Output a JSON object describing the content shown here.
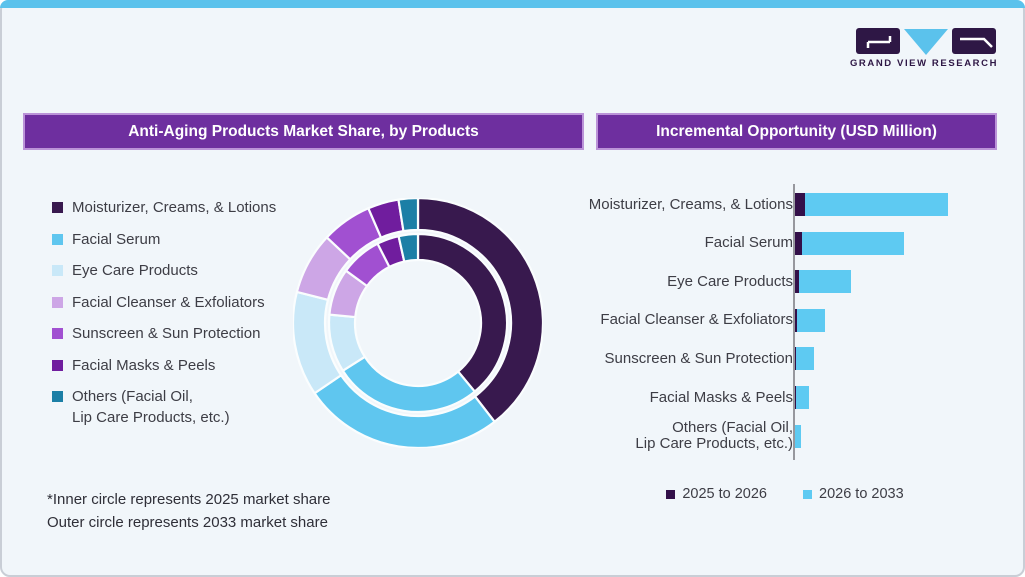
{
  "brand": {
    "name": "GRAND VIEW RESEARCH",
    "logo_colors": {
      "block": "#2e1745",
      "v_triangle": "#5bc2ec"
    }
  },
  "panels": {
    "left": {
      "title": "Anti-Aging Products Market Share, by Products"
    },
    "right": {
      "title": "Incremental Opportunity (USD Million)"
    }
  },
  "footnote": {
    "line1": "*Inner circle represents 2025 market share",
    "line2": "Outer circle represents 2033 market share"
  },
  "colors": {
    "background": "#f1f6fa",
    "card_border": "#c9ced6",
    "top_strip": "#5bc2ec",
    "header_fill": "#6e2f9f",
    "header_border": "#bb93d8",
    "text": "#3d3d45",
    "axis": "#97989e",
    "segment_gap": "#fafdfe"
  },
  "chart_data": [
    {
      "type": "pie",
      "variant": "double-donut",
      "title": "Anti-Aging Products Market Share, by Products",
      "note": "Inner circle = 2025 market share, outer circle = 2033 market share; values estimated from arc angles (percent)",
      "categories": [
        "Moisturizer, Creams, & Lotions",
        "Facial Serum",
        "Eye Care Products",
        "Facial Cleanser & Exfoliators",
        "Sunscreen & Sun Protection",
        "Facial Masks & Peels",
        "Others (Facial Oil,\nLip Care Products, etc.)"
      ],
      "colors": [
        "#38194e",
        "#5fc6ef",
        "#c9e8f8",
        "#cda6e6",
        "#a150d1",
        "#701d9e",
        "#1c7fa6"
      ],
      "series": [
        {
          "name": "2025 market share (inner circle)",
          "values": [
            39,
            27,
            10.5,
            8.5,
            7.5,
            4,
            3.5
          ]
        },
        {
          "name": "2033 market share (outer circle)",
          "values": [
            39.5,
            26,
            13.5,
            8,
            6.5,
            4,
            2.5
          ]
        }
      ],
      "legend_position": "left"
    },
    {
      "type": "bar",
      "orientation": "horizontal",
      "stacked": true,
      "title": "Incremental Opportunity (USD Million)",
      "note": "No numeric axis shown; values are relative units estimated from bar lengths, largest stacked bar = 100",
      "categories": [
        "Moisturizer, Creams, & Lotions",
        "Facial Serum",
        "Eye Care Products",
        "Facial Cleanser & Exfoliators",
        "Sunscreen & Sun Protection",
        "Facial Masks & Peels",
        "Others (Facial Oil,\nLip Care Products, etc.)"
      ],
      "series": [
        {
          "name": "2025 to 2026",
          "color": "#331049",
          "values": [
            6.5,
            4.8,
            2.8,
            1.3,
            0.9,
            0.7,
            0.5
          ]
        },
        {
          "name": "2026 to 2033",
          "color": "#5ecaf2",
          "values": [
            93.5,
            66.5,
            33.9,
            18.5,
            11.9,
            8.7,
            3.7
          ]
        }
      ],
      "xlim": [
        0,
        110
      ],
      "grid": false,
      "legend_position": "bottom"
    }
  ]
}
